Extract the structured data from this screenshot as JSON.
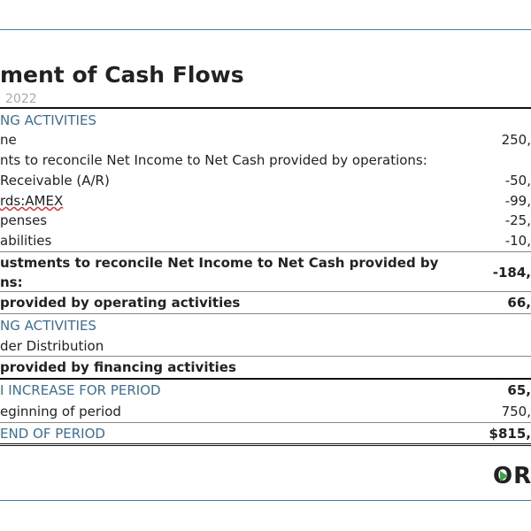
{
  "header": {
    "title": "ment of Cash Flows",
    "date": "2022"
  },
  "rows": [
    {
      "label": "NG ACTIVITIES"
    },
    {
      "label": "ne",
      "value": "250,"
    },
    {
      "label": "nts to reconcile Net Income to Net Cash provided by operations:"
    },
    {
      "label": "Receivable (A/R)",
      "value": "-50,"
    },
    {
      "label": "rds:AMEX",
      "value": "-99,"
    },
    {
      "label": "penses",
      "value": "-25,"
    },
    {
      "label": "abilities",
      "value": "-10,"
    },
    {
      "label": "ustments to reconcile Net Income to Net Cash provided by",
      "label2": "ns:",
      "value": "-184,"
    },
    {
      "label": "provided by operating activities",
      "value": "66,"
    },
    {
      "label": "NG ACTIVITIES"
    },
    {
      "label": "der Distribution"
    },
    {
      "label": "provided by financing activities"
    },
    {
      "label": "I INCREASE FOR PERIOD",
      "value": "65,"
    },
    {
      "label": "eginning of period",
      "value": "750,"
    },
    {
      "label": "END OF PERIOD",
      "value": "$815,"
    }
  ],
  "logo": "ORI"
}
